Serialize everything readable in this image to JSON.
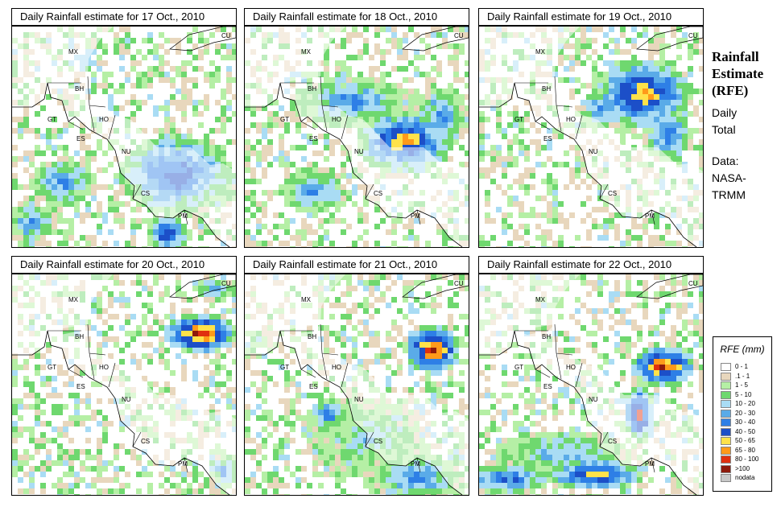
{
  "panels": [
    {
      "title": "Daily Rainfall estimate for  17 Oct., 2010"
    },
    {
      "title": "Daily Rainfall estimate for  18 Oct., 2010"
    },
    {
      "title": "Daily Rainfall estimate for  19 Oct., 2010"
    },
    {
      "title": "Daily Rainfall estimate for  20 Oct., 2010"
    },
    {
      "title": "Daily Rainfall estimate for  21 Oct., 2010"
    },
    {
      "title": "Daily Rainfall estimate for  22 Oct., 2010"
    }
  ],
  "country_labels": [
    "MX",
    "CU",
    "BH",
    "GT",
    "HO",
    "ES",
    "NU",
    "CS",
    "PM"
  ],
  "sidebar": {
    "title_lines": [
      "Rainfall",
      "Estimate",
      "(RFE)"
    ],
    "period_lines": [
      "Daily",
      "Total"
    ],
    "source_lines": [
      "Data:",
      "NASA-",
      "TRMM"
    ]
  },
  "legend": {
    "title": "RFE (mm)",
    "items": [
      {
        "label": "0 - 1",
        "color": "#ffffff"
      },
      {
        "label": ".1 - 1",
        "color": "#e8d7bd"
      },
      {
        "label": "1 - 5",
        "color": "#b5efa5"
      },
      {
        "label": "5 - 10",
        "color": "#6fd86f"
      },
      {
        "label": "10 - 20",
        "color": "#a9dcf4"
      },
      {
        "label": "20 - 30",
        "color": "#5aabe8"
      },
      {
        "label": "30 - 40",
        "color": "#2e7fe6"
      },
      {
        "label": "40 - 50",
        "color": "#1c4fc8"
      },
      {
        "label": "50 - 65",
        "color": "#ffe24a"
      },
      {
        "label": "65 - 80",
        "color": "#ff9a1a"
      },
      {
        "label": "80 - 100",
        "color": "#e0300f"
      },
      {
        "label": ">100",
        "color": "#8e1a0c"
      },
      {
        "label": "nodata",
        "color": "#c8c8c8"
      }
    ]
  }
}
